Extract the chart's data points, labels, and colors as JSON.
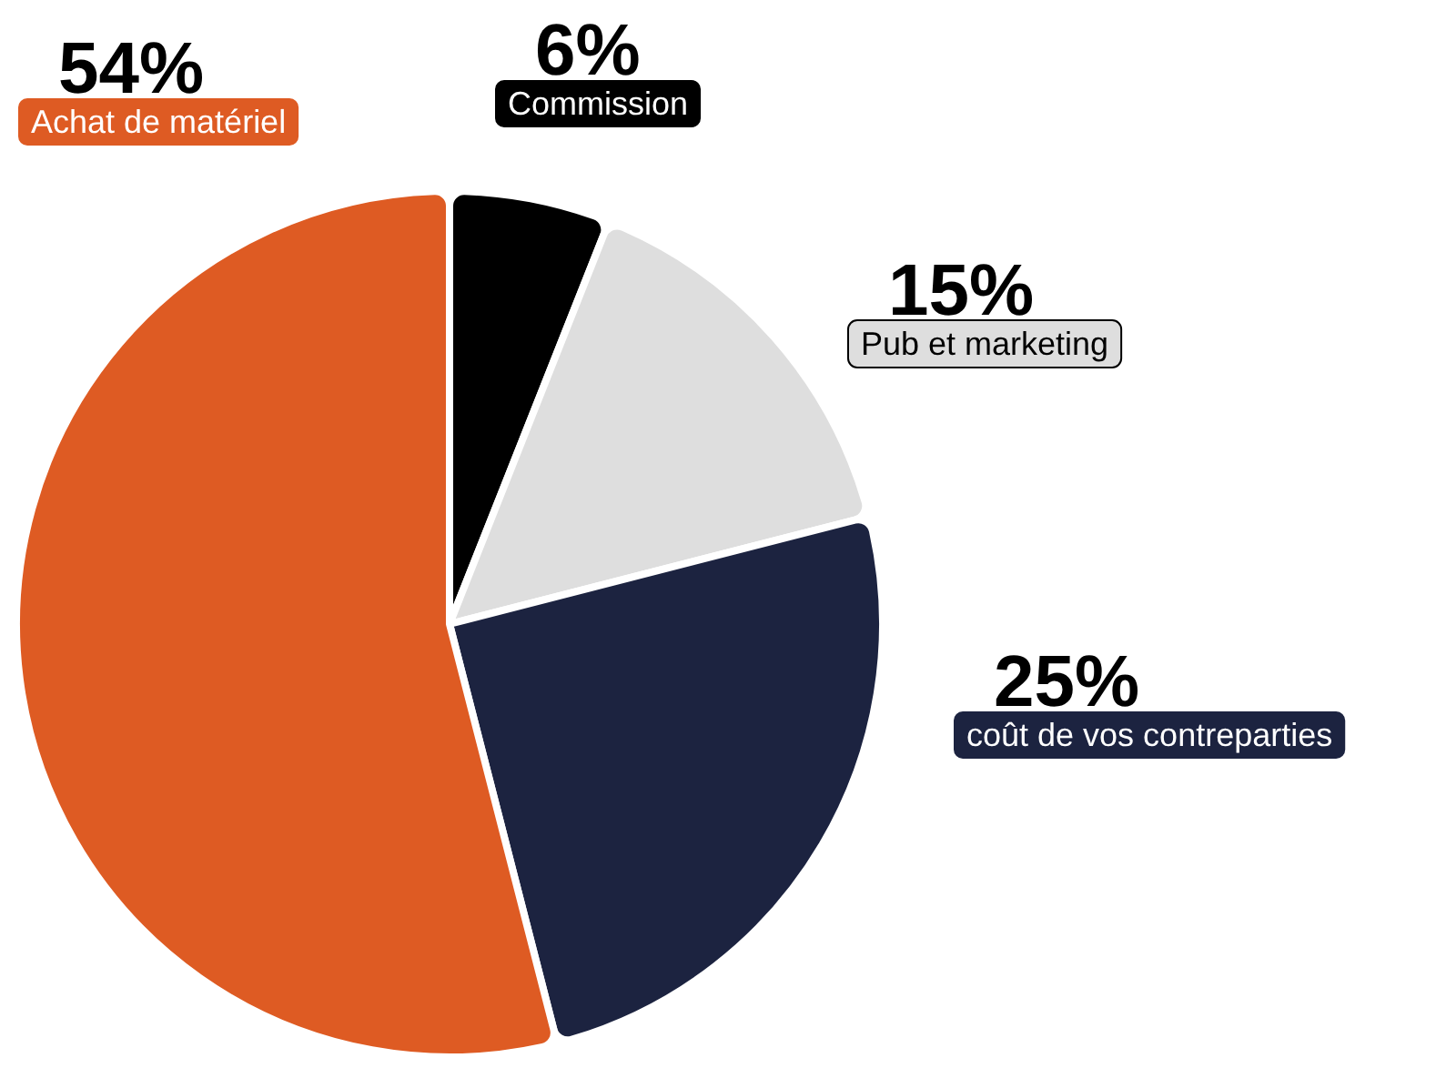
{
  "chart_data": {
    "type": "pie",
    "categories": [
      "Commission",
      "Pub et marketing",
      "coût de vos contreparties",
      "Achat de matériel"
    ],
    "values": [
      6,
      15,
      25,
      54
    ],
    "colors": [
      "#000000",
      "#dedede",
      "#1c2340",
      "#de5b23"
    ],
    "value_labels": [
      "6%",
      "15%",
      "25%",
      "54%"
    ],
    "legend": false
  }
}
